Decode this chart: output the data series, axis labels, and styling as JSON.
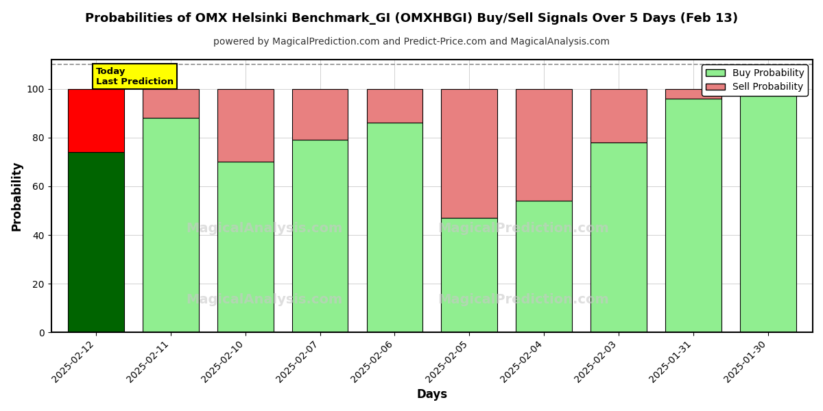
{
  "title": "Probabilities of OMX Helsinki Benchmark_GI (OMXHBGI) Buy/Sell Signals Over 5 Days (Feb 13)",
  "subtitle": "powered by MagicalPrediction.com and Predict-Price.com and MagicalAnalysis.com",
  "xlabel": "Days",
  "ylabel": "Probability",
  "dates": [
    "2025-02-12",
    "2025-02-11",
    "2025-02-10",
    "2025-02-07",
    "2025-02-06",
    "2025-02-05",
    "2025-02-04",
    "2025-02-03",
    "2025-01-31",
    "2025-01-30"
  ],
  "buy_values": [
    74,
    88,
    70,
    79,
    86,
    47,
    54,
    78,
    96,
    100
  ],
  "sell_values": [
    26,
    12,
    30,
    21,
    14,
    53,
    46,
    22,
    4,
    0
  ],
  "today_buy_color": "#006400",
  "today_sell_color": "#FF0000",
  "buy_color": "#90EE90",
  "sell_color": "#E88080",
  "bar_edge_color": "#000000",
  "today_annotation_bg": "#FFFF00",
  "today_annotation_text": "Today\nLast Prediction",
  "ylim": [
    0,
    112
  ],
  "dashed_line_y": 110,
  "dashed_line_color": "#808080",
  "grid_color": "#808080",
  "title_fontsize": 13,
  "subtitle_fontsize": 10,
  "axis_label_fontsize": 12,
  "tick_fontsize": 10,
  "legend_fontsize": 10,
  "bar_width": 0.75
}
